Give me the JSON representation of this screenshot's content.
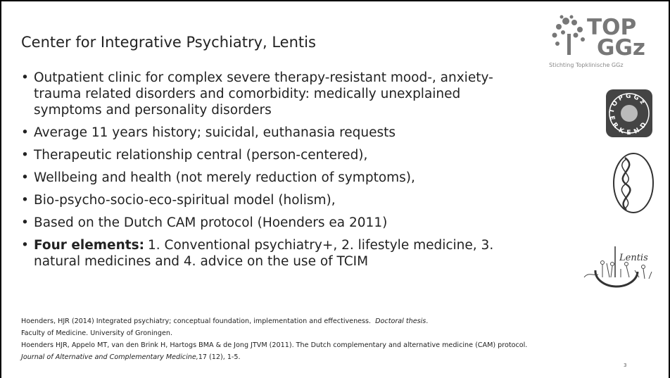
{
  "title": "Center for Integrative Psychiatry, Lentis",
  "bullets": [
    "Outpatient clinic for complex severe therapy-resistant mood-, anxiety- trauma related disorders and comorbidity: medically unexplained symptoms and personality disorders",
    "Average 11 years history; suicidal, euthanasia requests",
    "Therapeutic relationship central (person-centered),",
    "Wellbeing and health (not merely reduction of symptoms),",
    "Bio-psycho-socio-eco-spiritual model (holism),",
    "Based on the Dutch CAM protocol (Hoenders ea 2011)"
  ],
  "last_bullet": {
    "bold": "Four elements:",
    "text": "1. Conventional psychiatry+, 2. lifestyle medicine, 3. natural medicines and 4. advice on the use of TCIM"
  },
  "references": {
    "ref1": {
      "text": "Hoenders, HJR (2014) Integrated psychiatry; conceptual foundation, implementation and effectiveness.",
      "italic": "Doctoral thesis",
      "end": ".",
      "line2": "Faculty of Medicine. University of Groningen."
    },
    "ref2": {
      "text": "Hoenders HJR, Appelo MT, van den Brink H, Hartogs BMA & de Jong JTVM (2011). The Dutch complementary and alternative medicine (CAM) protocol.",
      "italic": "Journal of Alternative and Complementary Medicine,",
      "end": "17 (12), 1-5."
    }
  },
  "page_number": "3",
  "logos": {
    "topggz": {
      "line1": "TOP",
      "line2": "GGz",
      "caption": "Stichting Topklinische GGz"
    },
    "seal": {
      "top": "TOPGGz",
      "bottom": "ERKEND"
    },
    "lentis": "Lentis"
  }
}
